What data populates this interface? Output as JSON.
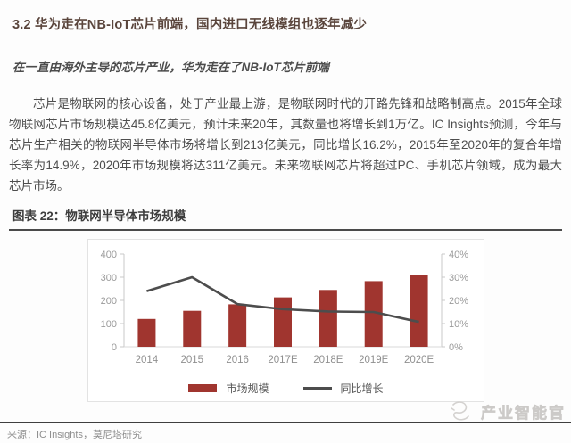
{
  "document": {
    "section_heading": "3.2 华为走在NB-IoT芯片前端，国内进口无线模组也逐年减少",
    "subheading": "在一直由海外主导的芯片产业，华为走在了NB-IoT芯片前端",
    "paragraph": "芯片是物联网的核心设备，处于产业最上游，是物联网时代的开路先锋和战略制高点。2015年全球物联网芯片市场规模达45.8亿美元，预计未来20年，其数量也将增长到1万亿。IC Insights预测，今年与芯片生产相关的物联网半导体市场将增长到213亿美元，同比增长16.2%，2015年至2020年的复合年增长率为14.9%，2020年市场规模将达311亿美元。未来物联网芯片将超过PC、手机芯片领域，成为最大芯片市场。",
    "figure_caption": "图表 22：物联网半导体市场规模",
    "source": "来源：IC Insights，莫尼塔研究",
    "watermark": "产业智能官"
  },
  "colors": {
    "heading": "#5a453c",
    "body_text": "#4d4d4d",
    "bar": "#a0352f",
    "line": "#4d4d4d",
    "axis_text": "#9a9a9a",
    "caption_rule": "#4a4a4a"
  },
  "chart_data": {
    "type": "bar",
    "title": "物联网半导体市场规模",
    "categories": [
      "2014",
      "2015",
      "2016",
      "2017E",
      "2018E",
      "2019E",
      "2020E"
    ],
    "series": [
      {
        "name": "市场规模",
        "type": "bar",
        "axis": "left",
        "values": [
          120,
          155,
          183,
          213,
          245,
          283,
          311
        ]
      },
      {
        "name": "同比增长",
        "type": "line",
        "axis": "right",
        "values": [
          24,
          30,
          18.4,
          16.2,
          15.2,
          15,
          10.7
        ],
        "unit": "%"
      }
    ],
    "left_axis": {
      "min": 0,
      "max": 400,
      "ticks": [
        0,
        100,
        200,
        300,
        400
      ]
    },
    "right_axis": {
      "min": 0,
      "max": 40,
      "ticks": [
        0,
        10,
        20,
        30,
        40
      ],
      "tick_labels": [
        "0%",
        "10%",
        "20%",
        "30%",
        "40%"
      ]
    },
    "grid": false,
    "legend_position": "bottom"
  }
}
